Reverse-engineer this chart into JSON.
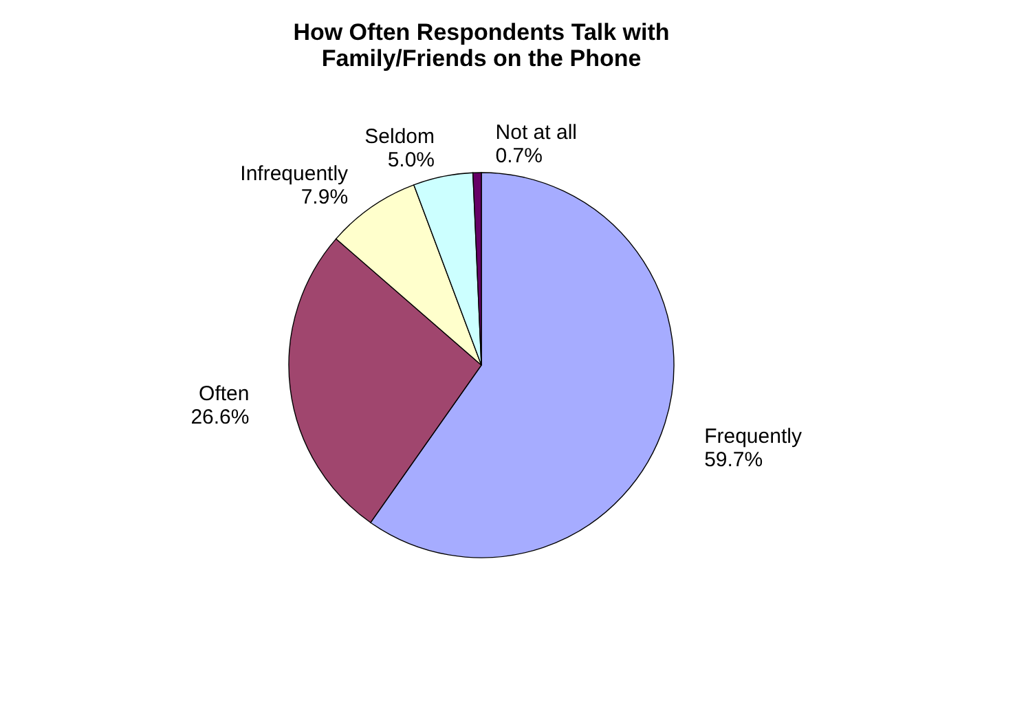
{
  "chart_data": {
    "type": "pie",
    "title": "How Often Respondents Talk with Family/Friends on the Phone",
    "categories": [
      "Frequently",
      "Often",
      "Infrequently",
      "Seldom",
      "Not at all"
    ],
    "values": [
      59.7,
      26.6,
      7.9,
      5.0,
      0.7
    ],
    "value_labels": [
      "59.7%",
      "26.6%",
      "7.9%",
      "5.0%",
      "0.7%"
    ],
    "colors": [
      "#a6acff",
      "#a0466e",
      "#ffffcc",
      "#ccffff",
      "#660066"
    ],
    "legend": false
  }
}
